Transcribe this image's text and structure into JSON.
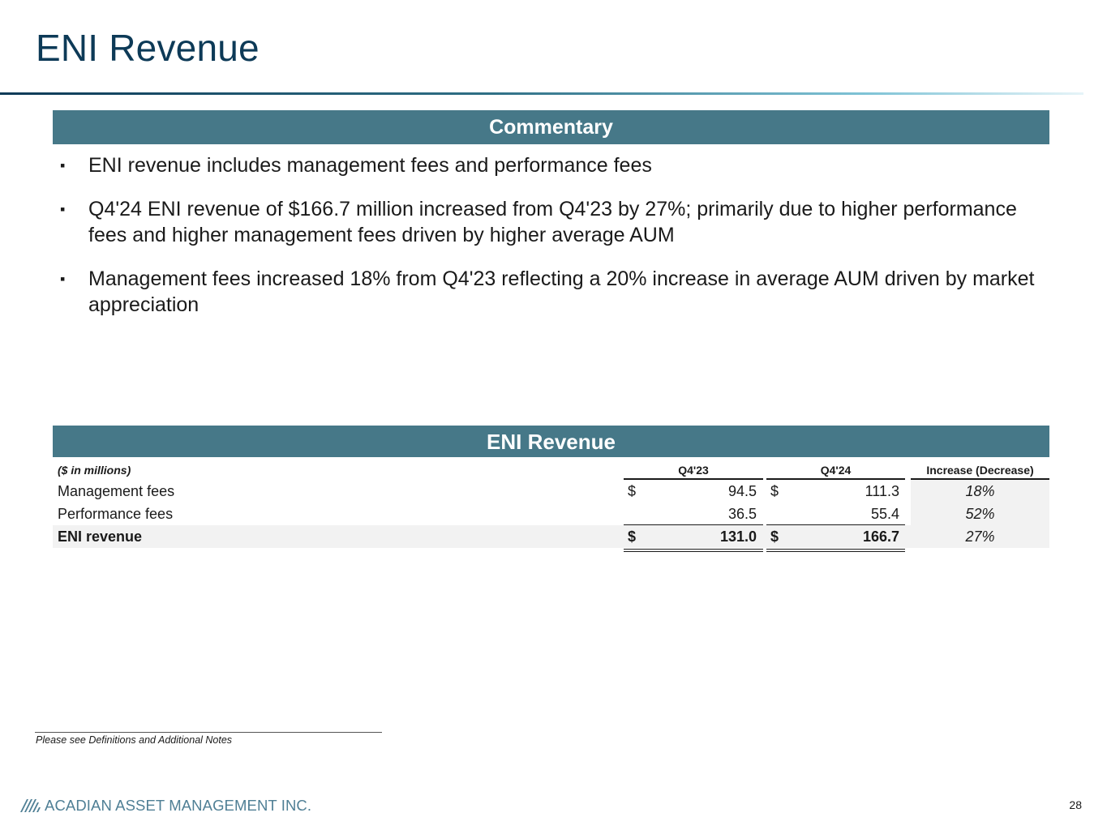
{
  "title": "ENI Revenue",
  "commentary": {
    "heading": "Commentary",
    "bullet_marker": "▪",
    "bullets": [
      "ENI revenue includes management fees and performance fees",
      "Q4'24 ENI revenue of $166.7 million increased from Q4'23 by 27%; primarily due to higher performance fees and higher management fees driven by higher average AUM",
      "Management fees increased 18% from Q4'23 reflecting a 20% increase in average AUM driven by market appreciation"
    ]
  },
  "table": {
    "heading": "ENI Revenue",
    "units": "($ in millions)",
    "columns": [
      "Q4'23",
      "Q4'24",
      "Increase (Decrease)"
    ],
    "currency": "$",
    "rows": [
      {
        "label": "Management fees",
        "q4_23": "94.5",
        "q4_24": "111.3",
        "change": "18%"
      },
      {
        "label": "Performance fees",
        "q4_23": "36.5",
        "q4_24": "55.4",
        "change": "52%"
      },
      {
        "label": "ENI revenue",
        "q4_23": "131.0",
        "q4_24": "166.7",
        "change": "27%"
      }
    ]
  },
  "footnote": "Please see Definitions and Additional Notes",
  "company": "ACADIAN ASSET MANAGEMENT INC.",
  "logo_icon": "acadian-stripes-icon",
  "page_number": "28",
  "colors": {
    "title": "#0d3a57",
    "band": "#467888",
    "logo": "#4f7f95",
    "row_shade": "#f2f2f2"
  }
}
